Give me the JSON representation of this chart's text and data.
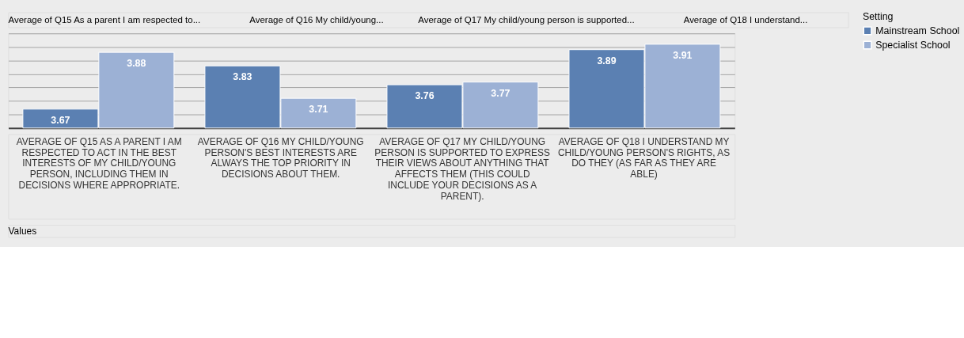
{
  "chart_data": {
    "type": "bar",
    "categories": [
      "AVERAGE OF Q15 AS A PARENT I AM RESPECTED TO ACT IN THE BEST INTERESTS OF MY CHILD/YOUNG PERSON, INCLUDING THEM IN DECISIONS WHERE APPROPRIATE.",
      "AVERAGE OF Q16 MY CHILD/YOUNG PERSON'S BEST INTERESTS ARE ALWAYS THE TOP PRIORITY IN DECISIONS ABOUT THEM.",
      "AVERAGE OF Q17 MY CHILD/YOUNG PERSON IS SUPPORTED TO EXPRESS THEIR VIEWS ABOUT ANYTHING THAT AFFECTS THEM (THIS COULD INCLUDE YOUR DECISIONS AS A PARENT).",
      "AVERAGE OF Q18 I UNDERSTAND MY CHILD/YOUNG PERSON'S RIGHTS, AS DO THEY (AS FAR AS THEY ARE ABLE)"
    ],
    "series": [
      {
        "name": "Mainstream School",
        "color": "#5b80b2",
        "values": [
          3.67,
          3.83,
          3.76,
          3.89
        ]
      },
      {
        "name": "Specialist School",
        "color": "#9cb1d5",
        "values": [
          3.88,
          3.71,
          3.77,
          3.91
        ]
      }
    ],
    "ylim": [
      3.6,
      3.95
    ],
    "grid": "y",
    "legend": "right",
    "legend_title": "Setting",
    "data_labels": true,
    "tick_labels": "x",
    "annotations": [
      "Average of Q15 As a parent I am respected to...",
      "Average of Q16 My child/young...",
      "Average of Q17 My child/young person is supported...",
      "Average of Q18 I understand...",
      "Values"
    ]
  }
}
